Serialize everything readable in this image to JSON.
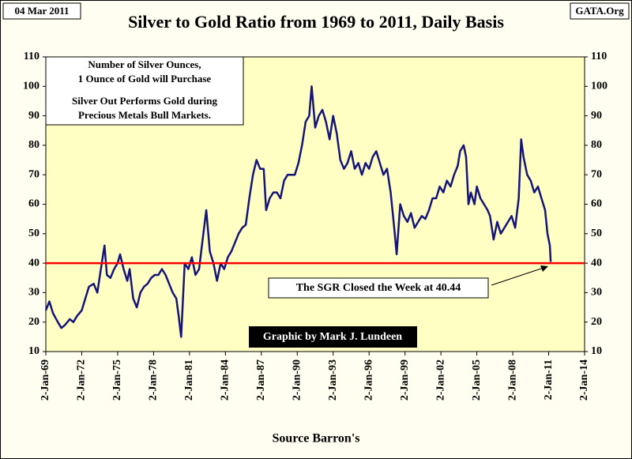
{
  "chart_data": {
    "type": "line",
    "title": "Silver to Gold Ratio from 1969 to 2011, Daily Basis",
    "date_label": "04 Mar 2011",
    "site_label": "GATA.Org",
    "x_label": "Source Barron's",
    "credit": "Graphic by Mark J. Lundeen",
    "note_lines": [
      "Number of Silver Ounces,",
      "1 Ounce of Gold will Purchase",
      "Silver Out Performs Gold during",
      "Precious Metals Bull Markets."
    ],
    "callout": "The SGR Closed the Week at 40.44",
    "reference_line": {
      "value": 40,
      "color": "#ff0000"
    },
    "xlim": [
      1969,
      2014
    ],
    "xticks": [
      {
        "value": 1969,
        "label": "2-Jan-69"
      },
      {
        "value": 1972,
        "label": "2-Jan-72"
      },
      {
        "value": 1975,
        "label": "2-Jan-75"
      },
      {
        "value": 1978,
        "label": "2-Jan-78"
      },
      {
        "value": 1981,
        "label": "2-Jan-81"
      },
      {
        "value": 1984,
        "label": "2-Jan-84"
      },
      {
        "value": 1987,
        "label": "2-Jan-87"
      },
      {
        "value": 1990,
        "label": "2-Jan-90"
      },
      {
        "value": 1993,
        "label": "2-Jan-93"
      },
      {
        "value": 1996,
        "label": "2-Jan-96"
      },
      {
        "value": 1999,
        "label": "2-Jan-99"
      },
      {
        "value": 2002,
        "label": "2-Jan-02"
      },
      {
        "value": 2005,
        "label": "2-Jan-05"
      },
      {
        "value": 2008,
        "label": "2-Jan-08"
      },
      {
        "value": 2011,
        "label": "2-Jan-11"
      },
      {
        "value": 2014,
        "label": "2-Jan-14"
      }
    ],
    "ylim": [
      10,
      110
    ],
    "yticks": [
      10,
      20,
      30,
      40,
      50,
      60,
      70,
      80,
      90,
      100,
      110
    ],
    "grid": false,
    "x": [
      1969.0,
      1969.3,
      1969.6,
      1970.0,
      1970.3,
      1970.6,
      1971.0,
      1971.3,
      1971.6,
      1972.0,
      1972.3,
      1972.6,
      1973.0,
      1973.3,
      1973.6,
      1973.9,
      1974.1,
      1974.4,
      1974.7,
      1975.0,
      1975.2,
      1975.5,
      1975.8,
      1976.0,
      1976.3,
      1976.6,
      1976.9,
      1977.2,
      1977.5,
      1977.8,
      1978.1,
      1978.4,
      1978.7,
      1979.0,
      1979.3,
      1979.6,
      1979.9,
      1980.1,
      1980.3,
      1980.6,
      1980.9,
      1981.2,
      1981.5,
      1981.8,
      1982.1,
      1982.4,
      1982.7,
      1983.0,
      1983.3,
      1983.6,
      1983.9,
      1984.2,
      1984.5,
      1984.8,
      1985.1,
      1985.4,
      1985.7,
      1986.0,
      1986.3,
      1986.6,
      1986.9,
      1987.2,
      1987.4,
      1987.7,
      1988.0,
      1988.3,
      1988.6,
      1988.9,
      1989.2,
      1989.5,
      1989.8,
      1990.1,
      1990.4,
      1990.7,
      1991.0,
      1991.2,
      1991.5,
      1991.8,
      1992.1,
      1992.4,
      1992.7,
      1993.0,
      1993.3,
      1993.6,
      1993.9,
      1994.2,
      1994.5,
      1994.8,
      1995.1,
      1995.4,
      1995.7,
      1996.0,
      1996.3,
      1996.6,
      1996.9,
      1997.2,
      1997.5,
      1997.8,
      1998.1,
      1998.3,
      1998.6,
      1998.9,
      1999.2,
      1999.5,
      1999.8,
      2000.1,
      2000.4,
      2000.7,
      2001.0,
      2001.3,
      2001.6,
      2001.9,
      2002.2,
      2002.5,
      2002.8,
      2003.1,
      2003.4,
      2003.6,
      2003.9,
      2004.1,
      2004.3,
      2004.5,
      2004.8,
      2005.0,
      2005.3,
      2005.6,
      2005.9,
      2006.1,
      2006.4,
      2006.7,
      2007.0,
      2007.3,
      2007.6,
      2007.9,
      2008.2,
      2008.5,
      2008.7,
      2008.9,
      2009.2,
      2009.5,
      2009.8,
      2010.1,
      2010.4,
      2010.7,
      2010.9,
      2011.1,
      2011.17
    ],
    "series": [
      {
        "name": "Silver to Gold Ratio",
        "color": "#14147a",
        "values": [
          24,
          27,
          23,
          20,
          18,
          19,
          21,
          20,
          22,
          24,
          28,
          32,
          33,
          30,
          38,
          46,
          36,
          35,
          38,
          40,
          43,
          38,
          34,
          38,
          28,
          25,
          30,
          32,
          33,
          35,
          36,
          36,
          38,
          36,
          33,
          30,
          28,
          22,
          15,
          40,
          38,
          42,
          36,
          38,
          48,
          58,
          44,
          40,
          34,
          40,
          38,
          42,
          44,
          47,
          50,
          52,
          53,
          62,
          70,
          75,
          72,
          72,
          58,
          62,
          64,
          64,
          62,
          68,
          70,
          70,
          70,
          74,
          80,
          88,
          90,
          100,
          86,
          90,
          92,
          88,
          82,
          90,
          84,
          75,
          72,
          74,
          78,
          72,
          74,
          70,
          74,
          72,
          76,
          78,
          74,
          70,
          72,
          64,
          52,
          43,
          60,
          56,
          54,
          57,
          52,
          54,
          56,
          55,
          58,
          62,
          62,
          66,
          64,
          68,
          66,
          70,
          73,
          78,
          80,
          76,
          60,
          64,
          60,
          66,
          62,
          60,
          58,
          56,
          48,
          54,
          50,
          52,
          54,
          56,
          52,
          62,
          82,
          76,
          70,
          68,
          64,
          66,
          62,
          58,
          50,
          46,
          40.44
        ]
      }
    ]
  }
}
